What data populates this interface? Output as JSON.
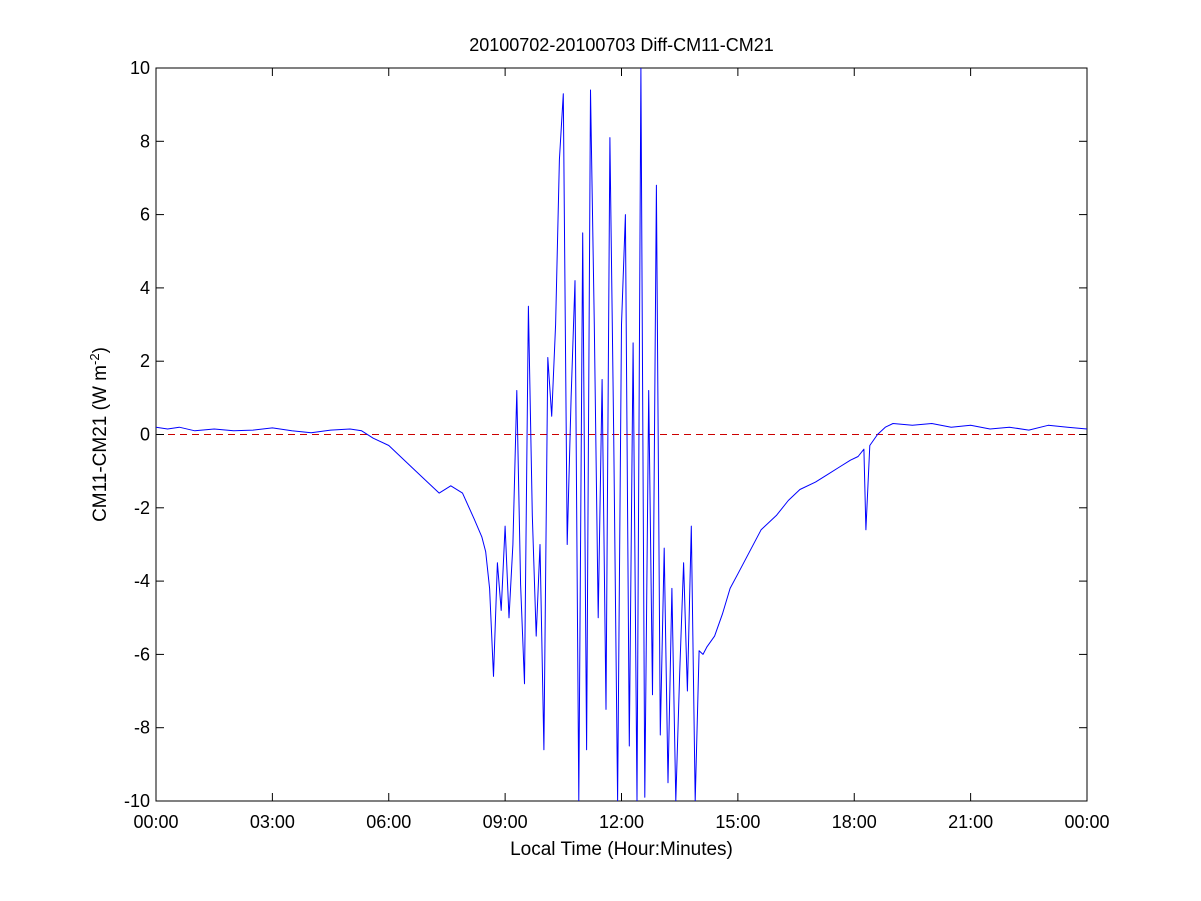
{
  "chart_data": {
    "type": "line",
    "title": "20100702-20100703 Diff-CM11-CM21",
    "xlabel": "Local Time (Hour:Minutes)",
    "ylabel": {
      "main": "CM11-CM21 (W m",
      "superscript": "-2",
      "close": ")"
    },
    "xlim": [
      0,
      24
    ],
    "ylim": [
      -10,
      10
    ],
    "x_ticks": [
      0,
      3,
      6,
      9,
      12,
      15,
      18,
      21,
      24
    ],
    "x_tick_labels": [
      "00:00",
      "03:00",
      "06:00",
      "09:00",
      "12:00",
      "15:00",
      "18:00",
      "21:00",
      "00:00"
    ],
    "y_ticks": [
      -10,
      -8,
      -6,
      -4,
      -2,
      0,
      2,
      4,
      6,
      8,
      10
    ],
    "y_tick_labels": [
      "-10",
      "-8",
      "-6",
      "-4",
      "-2",
      "0",
      "2",
      "4",
      "6",
      "8",
      "10"
    ],
    "grid": false,
    "reference_line": {
      "y": 0,
      "color": "#cc0000",
      "style": "dashed"
    },
    "series": [
      {
        "color": "#0000ff",
        "x": [
          0.0,
          0.3,
          0.6,
          1.0,
          1.5,
          2.0,
          2.5,
          3.0,
          3.5,
          4.0,
          4.5,
          5.0,
          5.3,
          5.6,
          6.0,
          6.3,
          6.6,
          7.0,
          7.3,
          7.6,
          7.9,
          8.2,
          8.4,
          8.5,
          8.6,
          8.7,
          8.8,
          8.9,
          9.0,
          9.1,
          9.2,
          9.3,
          9.4,
          9.5,
          9.6,
          9.7,
          9.8,
          9.9,
          10.0,
          10.1,
          10.2,
          10.3,
          10.4,
          10.5,
          10.6,
          10.7,
          10.8,
          10.9,
          11.0,
          11.1,
          11.2,
          11.3,
          11.4,
          11.5,
          11.6,
          11.7,
          11.8,
          11.9,
          12.0,
          12.1,
          12.2,
          12.3,
          12.4,
          12.5,
          12.6,
          12.7,
          12.8,
          12.9,
          13.0,
          13.1,
          13.2,
          13.3,
          13.4,
          13.5,
          13.6,
          13.7,
          13.8,
          13.9,
          14.0,
          14.1,
          14.2,
          14.4,
          14.6,
          14.8,
          15.0,
          15.3,
          15.6,
          16.0,
          16.3,
          16.6,
          17.0,
          17.3,
          17.6,
          17.9,
          18.1,
          18.25,
          18.3,
          18.4,
          18.6,
          18.8,
          19.0,
          19.5,
          20.0,
          20.5,
          21.0,
          21.5,
          22.0,
          22.5,
          23.0,
          23.5,
          24.0
        ],
        "y": [
          0.2,
          0.15,
          0.2,
          0.1,
          0.15,
          0.1,
          0.12,
          0.18,
          0.1,
          0.05,
          0.12,
          0.15,
          0.1,
          -0.1,
          -0.3,
          -0.6,
          -0.9,
          -1.3,
          -1.6,
          -1.4,
          -1.6,
          -2.3,
          -2.8,
          -3.2,
          -4.2,
          -6.6,
          -3.5,
          -4.8,
          -2.5,
          -5.0,
          -3.0,
          1.2,
          -4.1,
          -6.8,
          3.5,
          -2.2,
          -5.5,
          -3.0,
          -8.6,
          2.1,
          0.5,
          3.0,
          7.5,
          9.3,
          -3.0,
          1.0,
          4.2,
          -10.0,
          5.5,
          -8.6,
          9.4,
          3.0,
          -5.0,
          1.5,
          -7.5,
          8.1,
          0.0,
          -10.0,
          3.0,
          6.0,
          -8.5,
          2.5,
          -10.0,
          10.0,
          -9.9,
          1.2,
          -7.1,
          6.8,
          -8.2,
          -3.1,
          -9.5,
          -4.2,
          -10.0,
          -6.5,
          -3.5,
          -7.0,
          -2.5,
          -10.0,
          -5.9,
          -6.0,
          -5.8,
          -5.5,
          -4.9,
          -4.2,
          -3.8,
          -3.2,
          -2.6,
          -2.2,
          -1.8,
          -1.5,
          -1.3,
          -1.1,
          -0.9,
          -0.7,
          -0.6,
          -0.4,
          -2.6,
          -0.3,
          0.0,
          0.2,
          0.3,
          0.25,
          0.3,
          0.2,
          0.25,
          0.15,
          0.2,
          0.12,
          0.25,
          0.2,
          0.15
        ]
      }
    ]
  }
}
